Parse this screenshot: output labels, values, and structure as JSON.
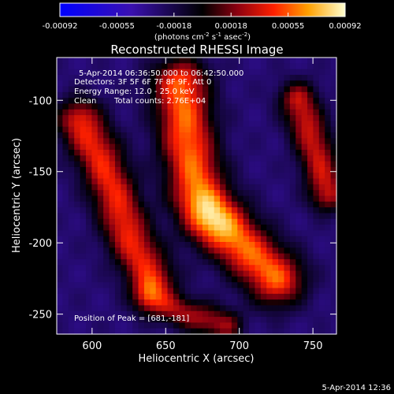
{
  "chart_data": {
    "type": "heatmap",
    "title": "Reconstructed RHESSI Image",
    "xlabel": "Heliocentric X (arcsec)",
    "ylabel": "Heliocentric Y (arcsec)",
    "xlim": [
      576,
      766
    ],
    "ylim": [
      -264,
      -70
    ],
    "x_ticks": [
      600,
      650,
      700,
      750
    ],
    "y_ticks": [
      -100,
      -150,
      -200,
      -250
    ],
    "colorbar": {
      "range": [
        -0.00092,
        0.00092
      ],
      "ticks": [
        "-0.00092",
        "-0.00055",
        "-0.00018",
        "0.00018",
        "0.00055",
        "0.00092"
      ],
      "units_prefix": "(photons cm",
      "units_sup1": "-2",
      "units_mid": " s",
      "units_sup2": "-1",
      "units_mid2": " asec",
      "units_sup3": "-2",
      "units_suffix": ")"
    },
    "annotations": {
      "time_range": "5-Apr-2014 06:36:50.000 to 06:42:50.000",
      "detectors": "Detectors: 3F 5F 6F 7F 8F 9F, Att 0",
      "energy": "Energy Range: 12.0 - 25.0 keV",
      "method": "Clean",
      "total_counts": "Total counts: 2.76E+04",
      "peak": "Position of Peak = [681,-181]"
    },
    "ridges": [
      {
        "points": [
          [
            592,
            -115
          ],
          [
            605,
            -140
          ],
          [
            615,
            -165
          ],
          [
            625,
            -195
          ],
          [
            640,
            -225
          ]
        ],
        "amp": 0.8,
        "width": 11
      },
      {
        "points": [
          [
            660,
            -90
          ],
          [
            665,
            -130
          ],
          [
            672,
            -165
          ],
          [
            681,
            -181
          ],
          [
            700,
            -200
          ],
          [
            725,
            -225
          ]
        ],
        "amp": 0.95,
        "width": 13
      },
      {
        "points": [
          [
            740,
            -100
          ],
          [
            752,
            -135
          ],
          [
            760,
            -165
          ]
        ],
        "amp": 0.7,
        "width": 9
      },
      {
        "points": [
          [
            640,
            -240
          ],
          [
            665,
            -250
          ],
          [
            690,
            -258
          ]
        ],
        "amp": 0.6,
        "width": 8
      }
    ],
    "peak": {
      "x": 681,
      "y": -181,
      "amp": 1.0,
      "width": 14
    }
  },
  "footer": {
    "timestamp": "5-Apr-2014 12:36"
  }
}
